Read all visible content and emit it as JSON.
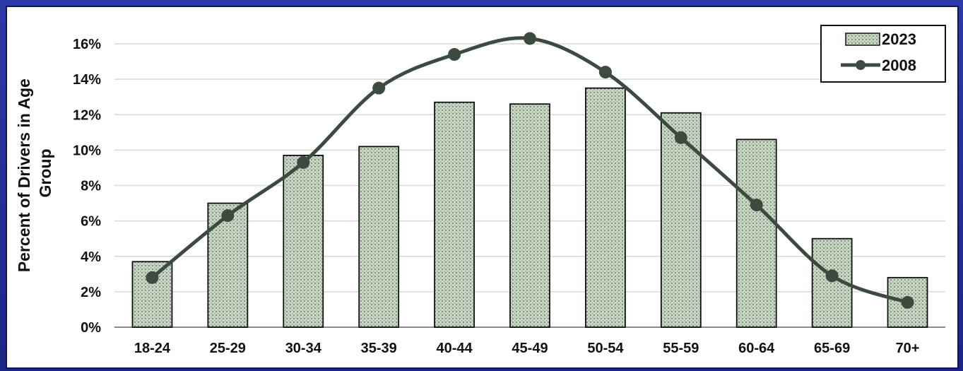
{
  "colors": {
    "frame": "#1f2a8a",
    "bar_fill": "#c9d6c4",
    "bar_dot": "#7d9480",
    "bar_stroke": "#111111",
    "line": "#3c4a40",
    "grid": "#d9d9d9"
  },
  "chart_data": {
    "type": "bar",
    "title": "",
    "xlabel": "",
    "ylabel": "Percent of Drivers in Age Group",
    "ylabel_lines": [
      "Percent of Drivers in Age",
      "Group"
    ],
    "ylim": [
      0,
      16
    ],
    "yticks": [
      0,
      2,
      4,
      6,
      8,
      10,
      12,
      14,
      16
    ],
    "ytick_labels": [
      "0%",
      "2%",
      "4%",
      "6%",
      "8%",
      "10%",
      "12%",
      "14%",
      "16%"
    ],
    "grid": true,
    "legend_position": "top-right",
    "categories": [
      "18-24",
      "25-29",
      "30-34",
      "35-39",
      "40-44",
      "45-49",
      "50-54",
      "55-59",
      "60-64",
      "65-69",
      "70+"
    ],
    "series": [
      {
        "name": "2023",
        "kind": "bar",
        "values": [
          3.7,
          7.0,
          9.7,
          10.2,
          12.7,
          12.6,
          13.5,
          12.1,
          10.6,
          5.0,
          2.8
        ]
      },
      {
        "name": "2008",
        "kind": "line",
        "values": [
          2.8,
          6.3,
          9.3,
          13.5,
          15.4,
          16.3,
          14.4,
          10.7,
          6.9,
          2.9,
          1.4
        ]
      }
    ]
  }
}
